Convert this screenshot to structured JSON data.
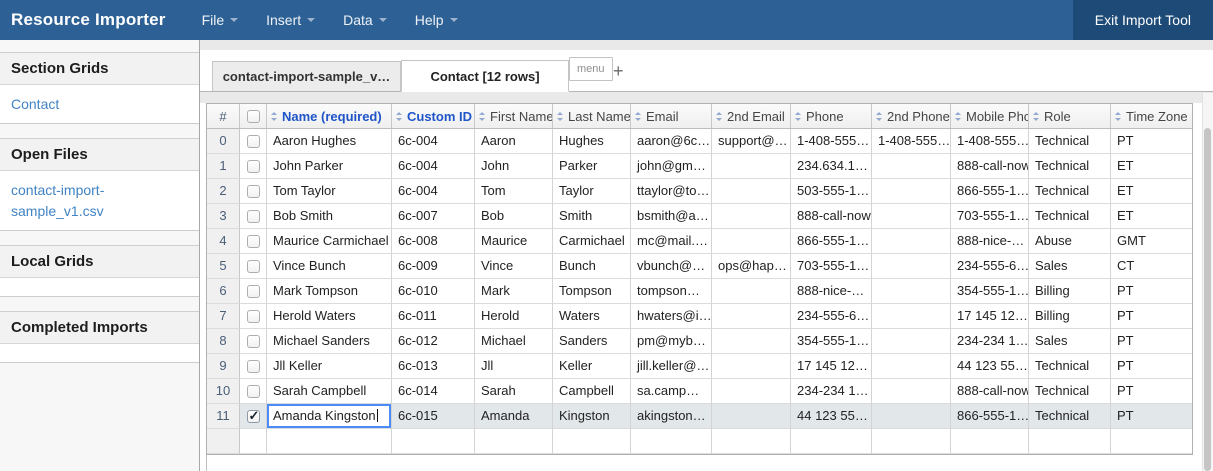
{
  "topbar": {
    "brand": "Resource Importer",
    "menus": [
      {
        "label": "File"
      },
      {
        "label": "Insert"
      },
      {
        "label": "Data"
      },
      {
        "label": "Help"
      }
    ],
    "exit_label": "Exit Import Tool"
  },
  "sidebar": {
    "sections": [
      {
        "title": "Section Grids",
        "items": [
          "Contact"
        ]
      },
      {
        "title": "Open Files",
        "items": [
          "contact-import-sample_v1.csv"
        ]
      },
      {
        "title": "Local Grids",
        "items": []
      },
      {
        "title": "Completed Imports",
        "items": []
      }
    ]
  },
  "tabs": {
    "file_tab": "contact-import-sample_v…",
    "active_tab": "Contact [12 rows]",
    "menu_button": "menu",
    "add_tab": "+"
  },
  "grid": {
    "row_number_header": "#",
    "columns": [
      {
        "label": "Name (required)",
        "emphasis": true
      },
      {
        "label": "Custom ID",
        "emphasis": true
      },
      {
        "label": "First Name",
        "emphasis": false
      },
      {
        "label": "Last Name",
        "emphasis": false
      },
      {
        "label": "Email",
        "emphasis": false
      },
      {
        "label": "2nd Email",
        "emphasis": false
      },
      {
        "label": "Phone",
        "emphasis": false
      },
      {
        "label": "2nd Phone",
        "emphasis": false
      },
      {
        "label": "Mobile Pho",
        "emphasis": false
      },
      {
        "label": "Role",
        "emphasis": false
      },
      {
        "label": "Time Zone",
        "emphasis": false
      }
    ],
    "rows": [
      {
        "num": "0",
        "checked": false,
        "cells": [
          "Aaron Hughes",
          "6c-004",
          "Aaron",
          "Hughes",
          "aaron@6c…",
          "support@…",
          "1-408-555…",
          "1-408-555…",
          "1-408-555…",
          "Technical",
          "PT"
        ]
      },
      {
        "num": "1",
        "checked": false,
        "cells": [
          "John Parker",
          "6c-004",
          "John",
          "Parker",
          "john@gm…",
          "",
          "234.634.1…",
          "",
          "888-call-now",
          "Technical",
          "ET"
        ]
      },
      {
        "num": "2",
        "checked": false,
        "cells": [
          "Tom Taylor",
          "6c-004",
          "Tom",
          "Taylor",
          "ttaylor@to…",
          "",
          "503-555-1…",
          "",
          "866-555-1…",
          "Technical",
          "ET"
        ]
      },
      {
        "num": "3",
        "checked": false,
        "cells": [
          "Bob Smith",
          "6c-007",
          "Bob",
          "Smith",
          "bsmith@a…",
          "",
          "888-call-now",
          "",
          "703-555-1…",
          "Technical",
          "ET"
        ]
      },
      {
        "num": "4",
        "checked": false,
        "cells": [
          "Maurice Carmichael",
          "6c-008",
          "Maurice",
          "Carmichael",
          "mc@mail.…",
          "",
          "866-555-1…",
          "",
          "888-nice-…",
          "Abuse",
          "GMT"
        ]
      },
      {
        "num": "5",
        "checked": false,
        "cells": [
          "Vince Bunch",
          "6c-009",
          "Vince",
          "Bunch",
          "vbunch@…",
          "ops@hap…",
          "703-555-1…",
          "",
          "234-555-6…",
          "Sales",
          "CT"
        ]
      },
      {
        "num": "6",
        "checked": false,
        "cells": [
          "Mark Tompson",
          "6c-010",
          "Mark",
          "Tompson",
          "tompson…",
          "",
          "888-nice-…",
          "",
          "354-555-1…",
          "Billing",
          "PT"
        ]
      },
      {
        "num": "7",
        "checked": false,
        "cells": [
          "Herold Waters",
          "6c-011",
          "Herold",
          "Waters",
          "hwaters@i…",
          "",
          "234-555-6…",
          "",
          "17 145 12…",
          "Billing",
          "PT"
        ]
      },
      {
        "num": "8",
        "checked": false,
        "cells": [
          "Michael Sanders",
          "6c-012",
          "Michael",
          "Sanders",
          "pm@myb…",
          "",
          "354-555-1…",
          "",
          "234-234 1…",
          "Sales",
          "PT"
        ]
      },
      {
        "num": "9",
        "checked": false,
        "cells": [
          "Jll Keller",
          "6c-013",
          "Jll",
          "Keller",
          "jill.keller@…",
          "",
          "17 145 12…",
          "",
          "44 123 55…",
          "Technical",
          "PT"
        ]
      },
      {
        "num": "10",
        "checked": false,
        "cells": [
          "Sarah Campbell",
          "6c-014",
          "Sarah",
          "Campbell",
          "sa.camp…",
          "",
          "234-234 1…",
          "",
          "888-call-now",
          "Technical",
          "PT"
        ]
      },
      {
        "num": "11",
        "checked": true,
        "selected": true,
        "editing": 0,
        "cells": [
          "Amanda Kingston",
          "6c-015",
          "Amanda",
          "Kingston",
          "akingston…",
          "",
          "44 123 55…",
          "",
          "866-555-1…",
          "Technical",
          "PT"
        ]
      },
      {
        "num": "",
        "placeholder": true,
        "cells": [
          "",
          "",
          "",
          "",
          "",
          "",
          "",
          "",
          "",
          "",
          ""
        ]
      }
    ]
  },
  "colors": {
    "topbar_bg": "#2d6195",
    "exit_button_bg": "#1d4a77",
    "link": "#4183c4",
    "sorted_column_header": "#1f55c8",
    "selected_row_bg": "#e2e7ea",
    "editing_cell_border": "#4b8bf5"
  }
}
